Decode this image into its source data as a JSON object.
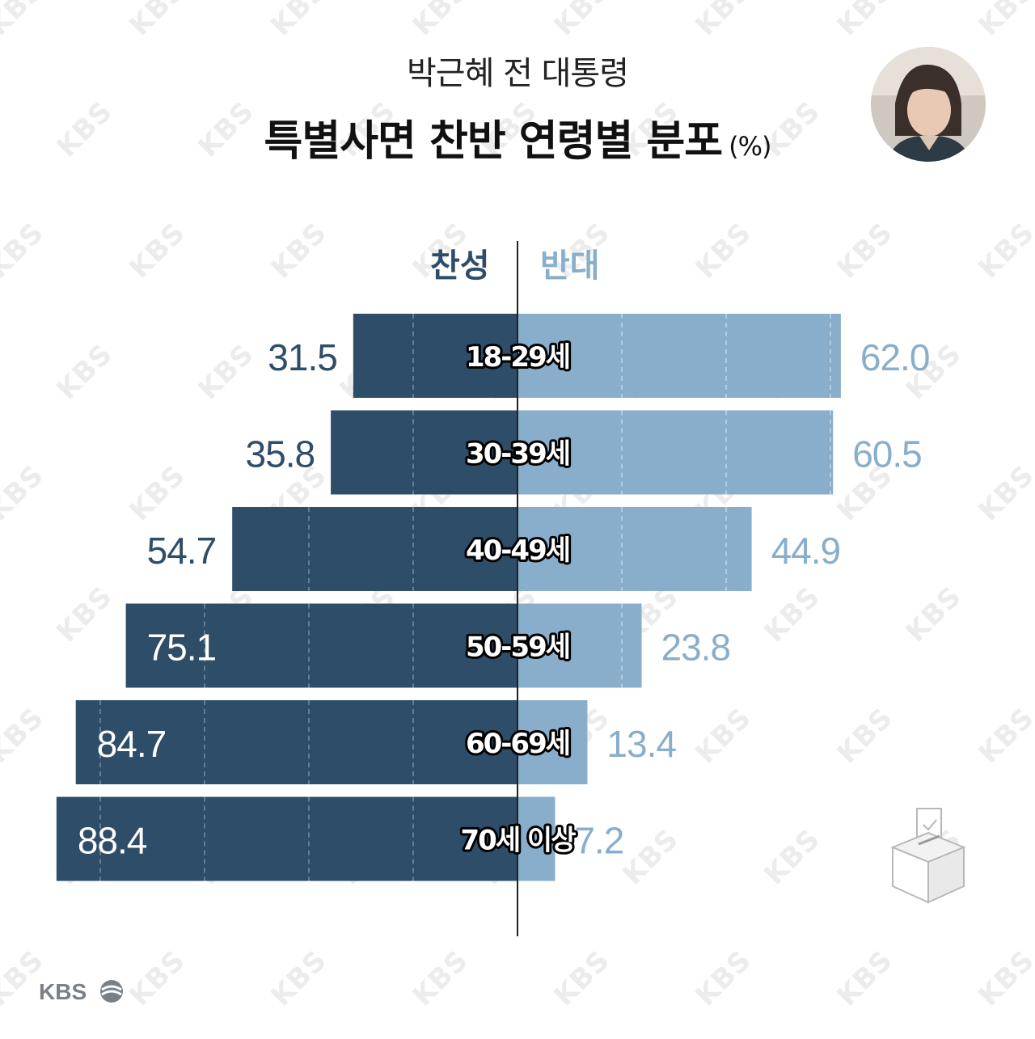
{
  "header": {
    "subtitle": "박근혜 전 대통령",
    "title": "특별사면 찬반 연령별 분포",
    "unit": "(%)"
  },
  "legend": {
    "for_label": "찬성",
    "against_label": "반대"
  },
  "colors": {
    "for": "#2e4d69",
    "against": "#88aecb",
    "axis": "#222222"
  },
  "footer": {
    "logo": "KBS"
  },
  "icons": {
    "photo": "portrait-photo",
    "ballot": "ballot-box-icon"
  },
  "chart_data": {
    "type": "bar",
    "orientation": "horizontal-diverging",
    "categories": [
      "18-29세",
      "30-39세",
      "40-49세",
      "50-59세",
      "60-69세",
      "70세 이상"
    ],
    "series": [
      {
        "name": "찬성",
        "values": [
          31.5,
          35.8,
          54.7,
          75.1,
          84.7,
          88.4
        ]
      },
      {
        "name": "반대",
        "values": [
          62.0,
          60.5,
          44.9,
          23.8,
          13.4,
          7.2
        ]
      }
    ],
    "value_labels_for": [
      "31.5",
      "35.8",
      "54.7",
      "75.1",
      "84.7",
      "88.4"
    ],
    "value_labels_against": [
      "62.0",
      "60.5",
      "44.9",
      "23.8",
      "13.4",
      "7.2"
    ],
    "grid": true,
    "legend_placement": "top-center"
  }
}
